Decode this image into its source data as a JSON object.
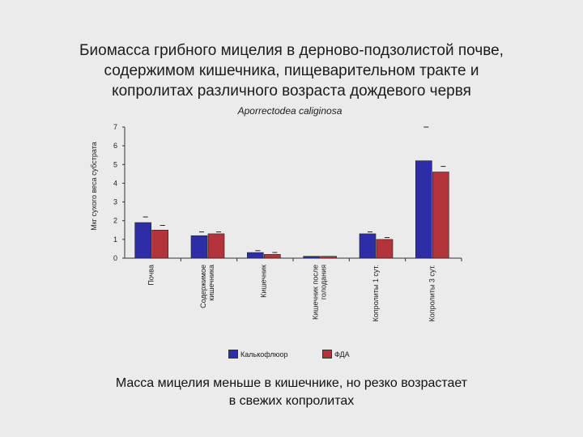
{
  "title_lines": [
    "Биомасса грибного мицелия в дерново-подзолистой почве,",
    "содержимом кишечника, пищеварительном тракте и",
    "копролитах различного возраста дождевого червя"
  ],
  "subtitle": "Aporrectodea caliginosa",
  "footer_lines": [
    "Масса мицелия меньше в кишечнике, но резко возрастает",
    "в свежих копролитах"
  ],
  "colors": {
    "series1": "#2d2ea6",
    "series2": "#b3333a",
    "axis": "#333333"
  },
  "chart_data": {
    "type": "bar",
    "ylabel": "Мкг сухого веса субстрата",
    "xlabel": "",
    "ylim": [
      0,
      7
    ],
    "yticks": [
      0,
      1,
      2,
      3,
      4,
      5,
      6,
      7
    ],
    "categories": [
      "Почва",
      "Содержимое кишечника",
      "Кишечник",
      "Кишечник после голодания",
      "Копролиты 1 сут.",
      "Копролиты 3 сут."
    ],
    "category_lines": [
      [
        "Почва"
      ],
      [
        "Содержимое",
        "кишечника"
      ],
      [
        "Кишечник"
      ],
      [
        "Кишечник после",
        "голодания"
      ],
      [
        "Копролиты 1 сут."
      ],
      [
        "Копролиты 3 сут."
      ]
    ],
    "series": [
      {
        "name": "Калькофлюор",
        "values": [
          1.9,
          1.2,
          0.3,
          0.1,
          1.3,
          5.2
        ],
        "errors": [
          0.3,
          0.2,
          0.1,
          0.0,
          0.1,
          1.8
        ]
      },
      {
        "name": "ФДА",
        "values": [
          1.5,
          1.3,
          0.2,
          0.1,
          1.0,
          4.6
        ],
        "errors": [
          0.25,
          0.1,
          0.1,
          0.0,
          0.1,
          0.3
        ]
      }
    ],
    "grid": false,
    "legend": "bottom"
  }
}
